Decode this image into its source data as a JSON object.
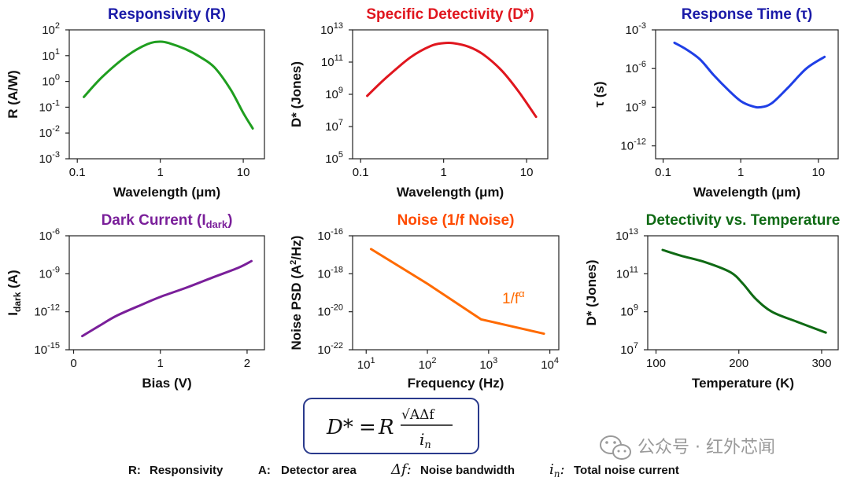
{
  "chart_data": [
    {
      "type": "line",
      "title": "Responsivity (R)",
      "color": "#1f9e1f",
      "title_color": "#1a1aa8",
      "xlabel": "Wavelength (μm)",
      "ylabel": "R (A/W)",
      "xscale": "log",
      "yscale": "log",
      "xlim": [
        0.08,
        18
      ],
      "ylim": [
        0.001,
        100
      ],
      "xticks": [
        0.1,
        1,
        10
      ],
      "xtick_labels": [
        "0.1",
        "1",
        "10"
      ],
      "yticks": [
        -3,
        -2,
        -1,
        0,
        1,
        2
      ],
      "ytick_label_base": "10",
      "ytick_label_exponents": [
        "-3",
        "-2",
        "-1",
        "0",
        "1",
        "2"
      ],
      "series": [
        {
          "x": [
            0.12,
            0.2,
            0.4,
            0.7,
            1.0,
            1.3,
            2.0,
            3.0,
            4.5,
            7.0,
            10.0,
            13.0
          ],
          "y": [
            0.25,
            1.5,
            10,
            28,
            35,
            30,
            18,
            9,
            3.5,
            0.5,
            0.06,
            0.015
          ]
        }
      ]
    },
    {
      "type": "line",
      "title": "Specific Detectivity (D*)",
      "color": "#e0161e",
      "title_color": "#e0161e",
      "xlabel": "Wavelength (μm)",
      "ylabel": "D* (Jones)",
      "xscale": "log",
      "yscale": "log",
      "xlim": [
        0.08,
        18
      ],
      "ylim": [
        100000,
        10000000000000
      ],
      "xticks": [
        0.1,
        1,
        10
      ],
      "xtick_labels": [
        "0.1",
        "1",
        "10"
      ],
      "yticks": [
        5,
        7,
        9,
        11,
        13
      ],
      "ytick_label_base": "10",
      "ytick_label_exponents": [
        "5",
        "7",
        "9",
        "11",
        "13"
      ],
      "series": [
        {
          "x": [
            0.12,
            0.2,
            0.4,
            0.7,
            1.0,
            1.3,
            2.0,
            3.0,
            5.0,
            8.0,
            13.0
          ],
          "y": [
            800000000,
            10000000000,
            200000000000,
            1000000000000,
            1500000000000,
            1500000000000,
            900000000000,
            300000000000,
            30000000000,
            1500000000,
            40000000
          ]
        }
      ]
    },
    {
      "type": "line",
      "title": "Response Time (τ)",
      "color": "#1f3fe6",
      "title_color": "#1a1aa8",
      "xlabel": "Wavelength (μm)",
      "ylabel": "τ (s)",
      "xscale": "log",
      "yscale": "log",
      "xlim": [
        0.08,
        18
      ],
      "ylim": [
        1e-13,
        0.001
      ],
      "xticks": [
        0.1,
        1,
        10
      ],
      "xtick_labels": [
        "0.1",
        "1",
        "10"
      ],
      "yticks": [
        -12,
        -9,
        -6,
        -3
      ],
      "ytick_label_base": "10",
      "ytick_label_exponents": [
        "-12",
        "-9",
        "-6",
        "-3"
      ],
      "series": [
        {
          "x": [
            0.14,
            0.2,
            0.3,
            0.45,
            0.7,
            1.0,
            1.4,
            1.8,
            2.5,
            4.0,
            7.0,
            12.0
          ],
          "y": [
            0.0001,
            3e-05,
            5e-06,
            3e-07,
            2e-08,
            3e-09,
            1.2e-09,
            1e-09,
            2e-09,
            3e-08,
            1e-06,
            8e-06
          ]
        }
      ]
    },
    {
      "type": "line",
      "title": "Dark Current (I",
      "title_sub": "dark",
      "title_close": ")",
      "color": "#7a1f9a",
      "title_color": "#7a1f9a",
      "xlabel": "Bias (V)",
      "ylabel": "I",
      "ylabel_sub": "dark",
      "ylabel_unit": " (A)",
      "xscale": "linear",
      "yscale": "log",
      "xlim": [
        -0.05,
        2.2
      ],
      "ylim": [
        1e-15,
        1e-06
      ],
      "xticks": [
        0,
        1,
        2
      ],
      "xtick_labels": [
        "0",
        "1",
        "2"
      ],
      "yticks": [
        -15,
        -12,
        -9,
        -6
      ],
      "ytick_label_base": "10",
      "ytick_label_exponents": [
        "-15",
        "-12",
        "-9",
        "-6"
      ],
      "series": [
        {
          "x": [
            0.1,
            0.3,
            0.5,
            0.8,
            1.0,
            1.3,
            1.6,
            1.9,
            2.05
          ],
          "y": [
            1.2e-14,
            8e-14,
            5e-13,
            4e-12,
            1.5e-11,
            8e-11,
            5e-10,
            3e-09,
            1e-08
          ]
        }
      ]
    },
    {
      "type": "line",
      "title": "Noise (1/f Noise)",
      "color": "#ff6a00",
      "title_color": "#ff4a00",
      "xlabel": "Frequency (Hz)",
      "ylabel": "Noise PSD (A",
      "ylabel_sup": "2",
      "ylabel_unit": "/Hz)",
      "xscale": "log",
      "yscale": "log",
      "xlim": [
        6,
        14000
      ],
      "ylim": [
        1e-22,
        1e-16
      ],
      "xticks": [
        1,
        2,
        3,
        4
      ],
      "xtick_label_base": "10",
      "xtick_label_exponents": [
        "1",
        "2",
        "3",
        "4"
      ],
      "yticks": [
        -22,
        -20,
        -18,
        -16
      ],
      "ytick_label_base": "10",
      "ytick_label_exponents": [
        "-22",
        "-20",
        "-18",
        "-16"
      ],
      "annotation": "1/f",
      "annotation_sup": "α",
      "series": [
        {
          "x": [
            12,
            100,
            750,
            8000
          ],
          "y": [
            2e-17,
            3e-19,
            4e-21,
            7e-22
          ]
        }
      ]
    },
    {
      "type": "line",
      "title": "Detectivity vs. Temperature",
      "color": "#0f6a14",
      "title_color": "#0f6a14",
      "xlabel": "Temperature (K)",
      "ylabel": "D* (Jones)",
      "xscale": "linear",
      "yscale": "log",
      "xlim": [
        90,
        320
      ],
      "ylim": [
        10000000,
        10000000000000
      ],
      "xticks": [
        100,
        200,
        300
      ],
      "xtick_labels": [
        "100",
        "200",
        "300"
      ],
      "yticks": [
        7,
        9,
        11,
        13
      ],
      "ytick_label_base": "10",
      "ytick_label_exponents": [
        "7",
        "9",
        "11",
        "13"
      ],
      "series": [
        {
          "x": [
            108,
            130,
            160,
            190,
            205,
            220,
            240,
            270,
            305
          ],
          "y": [
            1800000000000,
            900000000000,
            400000000000,
            120000000000,
            30000000000,
            5000000000,
            1000000000,
            300000000,
            80000000
          ]
        }
      ]
    }
  ],
  "equation": {
    "lhs": "D*",
    "eq": "=",
    "r": "R",
    "num": "√AΔf",
    "den": "i",
    "den_sub": "n"
  },
  "legend": [
    {
      "sym": "R:",
      "text": "Responsivity"
    },
    {
      "sym": "A:",
      "text": "Detector area"
    },
    {
      "sym": "Δf:",
      "text": "Noise bandwidth"
    },
    {
      "sym": "i",
      "sub": "n",
      "sym_suffix": ":",
      "text": "Total noise current"
    }
  ],
  "watermark": "公众号 · 红外芯闻"
}
